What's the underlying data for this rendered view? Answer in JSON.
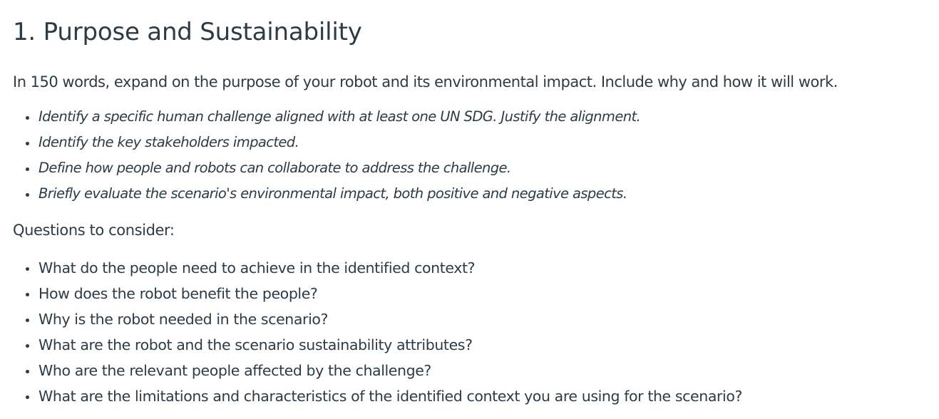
{
  "title": "1. Purpose and Sustainability",
  "intro": "In 150 words, expand on the purpose of your robot and its environmental impact. Include why and how it will work.",
  "requirements": [
    "Identify a specific human challenge aligned with at least one UN SDG. Justify the alignment.",
    "Identify the key stakeholders impacted.",
    "Define how people and robots can collaborate to address the challenge.",
    "Briefly evaluate the scenario's environmental impact, both positive and negative aspects."
  ],
  "questions_heading": "Questions to consider:",
  "questions": [
    "What do the people need to achieve in the identified context?",
    "How does the robot benefit the people?",
    "Why is the robot needed in the scenario?",
    "What are the robot and the scenario sustainability attributes?",
    "Who are the relevant people affected by the challenge?",
    "What are the limitations and characteristics of the identified context you are using for the scenario?"
  ]
}
